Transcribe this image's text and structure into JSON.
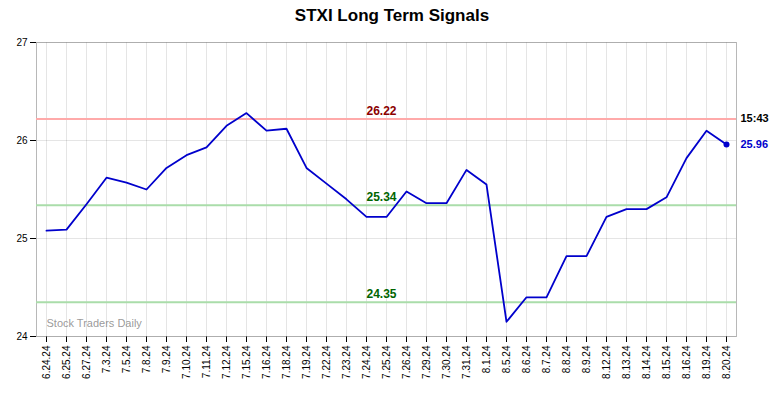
{
  "chart_data": {
    "type": "line",
    "title": "STXI Long Term Signals",
    "categories": [
      "6.24.24",
      "6.25.24",
      "6.27.24",
      "7.3.24",
      "7.5.24",
      "7.8.24",
      "7.9.24",
      "7.10.24",
      "7.11.24",
      "7.12.24",
      "7.15.24",
      "7.16.24",
      "7.18.24",
      "7.19.24",
      "7.22.24",
      "7.23.24",
      "7.24.24",
      "7.25.24",
      "7.26.24",
      "7.29.24",
      "7.30.24",
      "7.31.24",
      "8.1.24",
      "8.5.24",
      "8.6.24",
      "8.7.24",
      "8.8.24",
      "8.9.24",
      "8.12.24",
      "8.13.24",
      "8.14.24",
      "8.15.24",
      "8.16.24",
      "8.19.24",
      "8.20.24"
    ],
    "values": [
      25.08,
      25.09,
      25.35,
      25.62,
      25.57,
      25.5,
      25.72,
      25.85,
      25.93,
      26.15,
      26.28,
      26.1,
      26.12,
      25.72,
      25.56,
      25.4,
      25.22,
      25.22,
      25.48,
      25.36,
      25.36,
      25.7,
      25.55,
      24.15,
      24.4,
      24.4,
      24.82,
      24.82,
      25.22,
      25.3,
      25.3,
      25.42,
      25.82,
      26.1,
      25.96
    ],
    "color": "#0000cc",
    "ylim": [
      24.0,
      27.0
    ],
    "yticks": [
      24,
      25,
      26,
      27
    ],
    "grid": true,
    "hlines": [
      {
        "value": 26.22,
        "label": "26.22",
        "color": "#ffaaaa",
        "label_color": "darkred",
        "x": "7.24.24"
      },
      {
        "value": 25.34,
        "label": "25.34",
        "color": "#aaddaa",
        "label_color": "darkgreen",
        "x": "7.24.24"
      },
      {
        "value": 24.35,
        "label": "24.35",
        "color": "#aaddaa",
        "label_color": "darkgreen",
        "x": "7.24.24"
      }
    ],
    "annotations": [
      {
        "text": "15:43",
        "y": 26.22,
        "color": "black"
      },
      {
        "text": "25.96",
        "y": 25.96,
        "color": "#0000cc"
      }
    ],
    "watermark": "Stock Traders Daily"
  }
}
